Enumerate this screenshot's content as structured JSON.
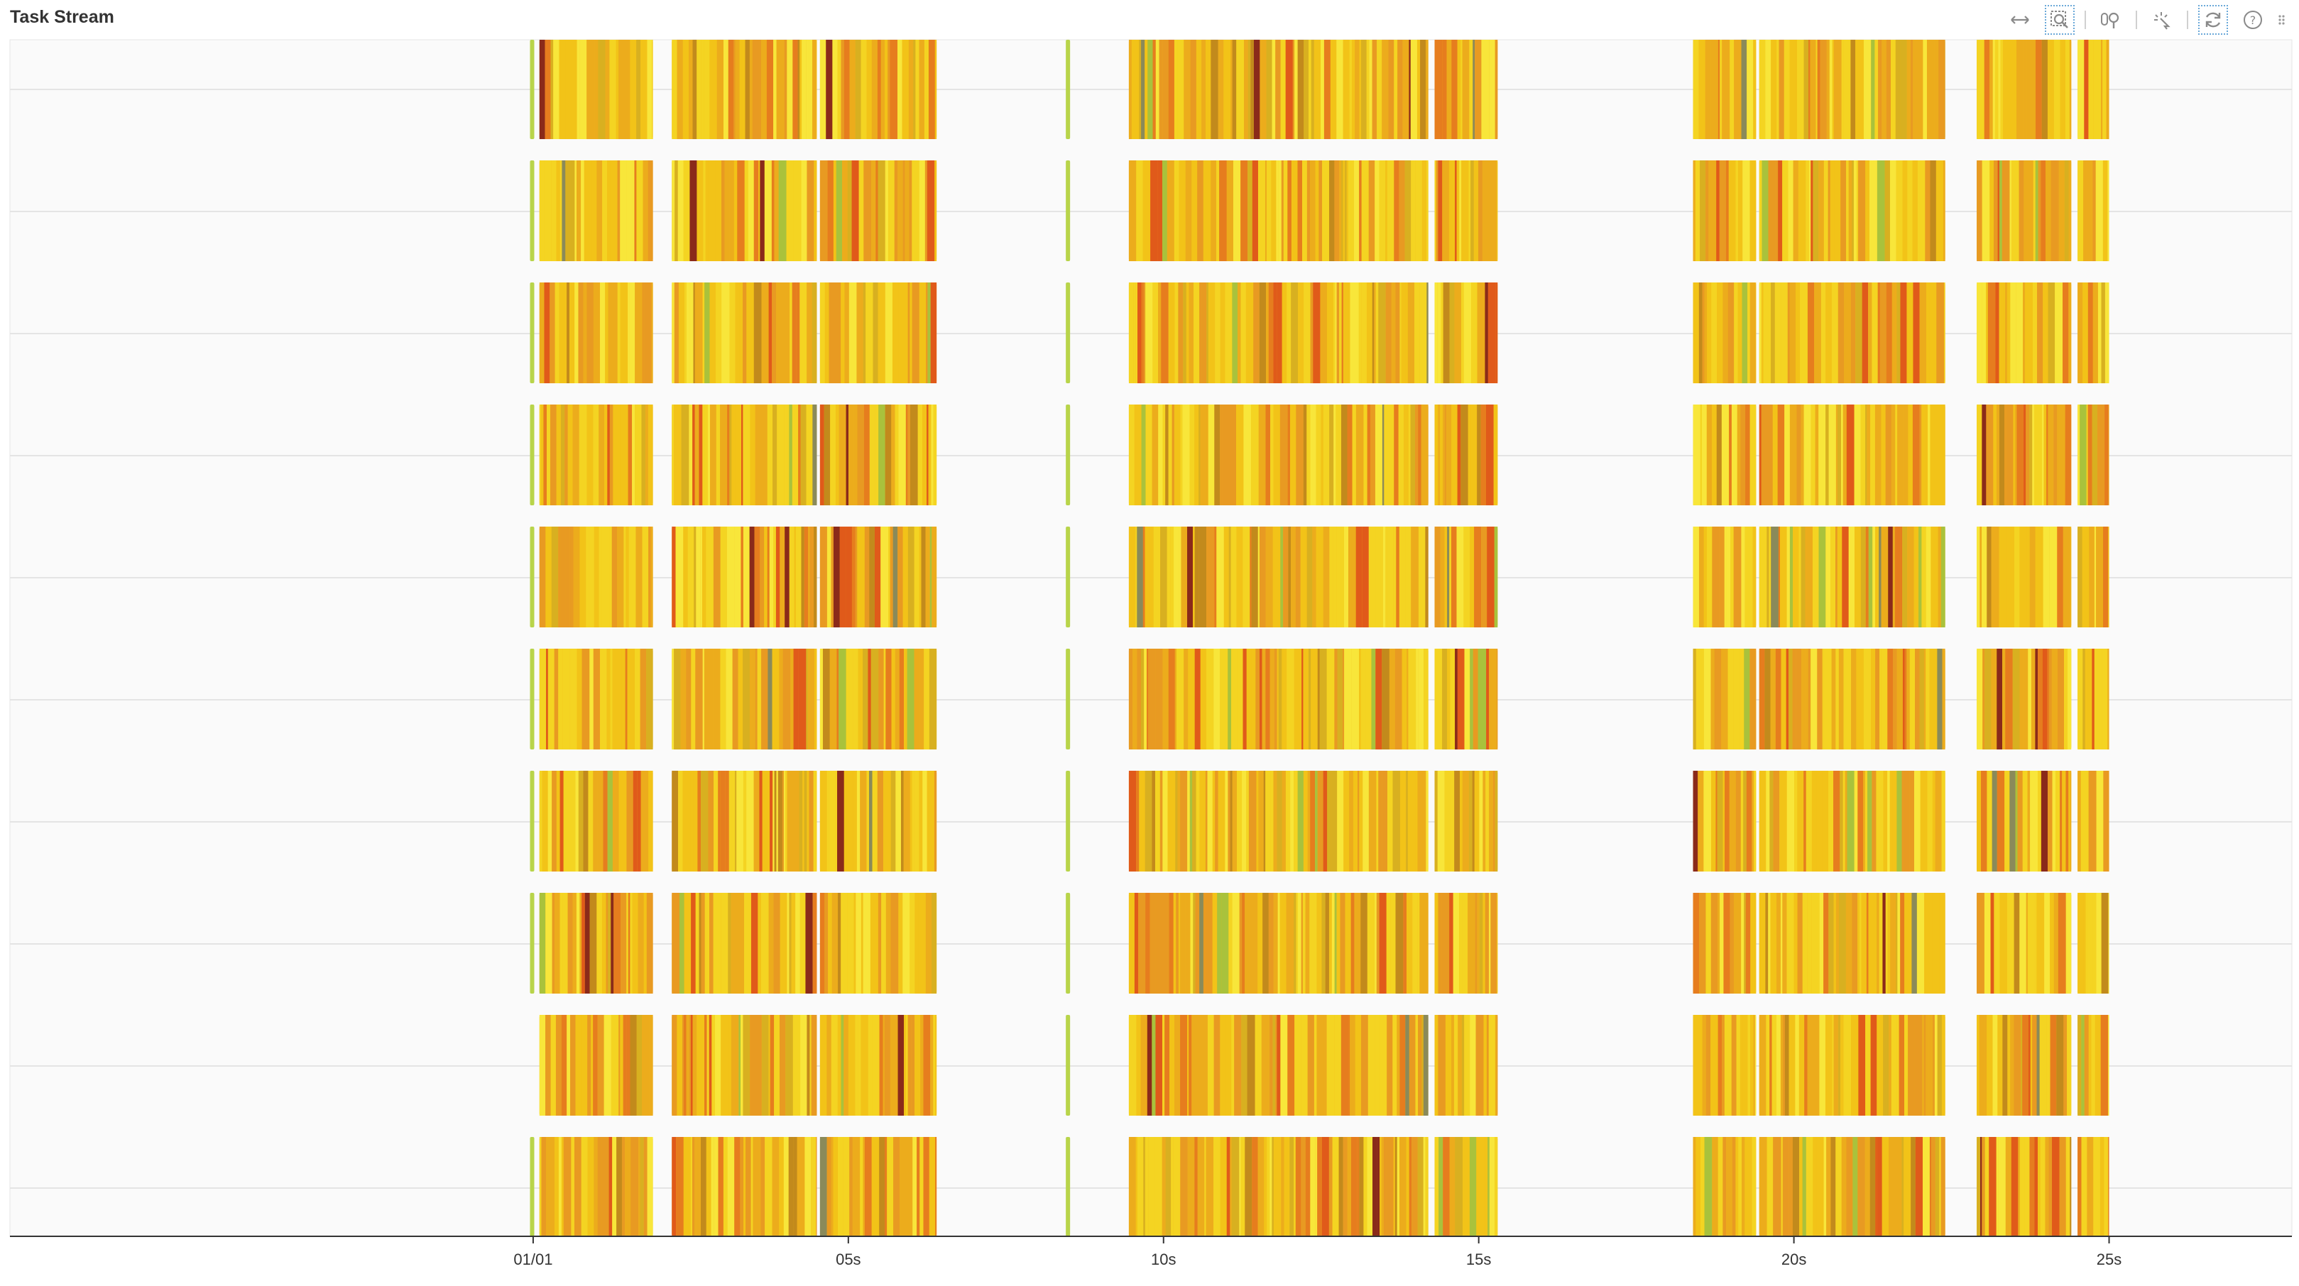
{
  "header": {
    "title": "Task Stream"
  },
  "toolbar": {
    "tools": [
      "pan-icon",
      "box-zoom-icon",
      "wheel-zoom-icon",
      "tap-icon",
      "reset-icon",
      "help-icon"
    ]
  },
  "chart_data": {
    "type": "timeline",
    "title": "Task Stream",
    "xlabel": "",
    "ylabel": "",
    "xlim": [
      -8.3,
      27.9
    ],
    "x_ticks": [
      {
        "value": 0,
        "label": "01/01"
      },
      {
        "value": 5,
        "label": "05s"
      },
      {
        "value": 10,
        "label": "10s"
      },
      {
        "value": 15,
        "label": "15s"
      },
      {
        "value": 20,
        "label": "20s"
      },
      {
        "value": 25,
        "label": "25s"
      }
    ],
    "lanes": 10,
    "grid": true,
    "task_groups": [
      {
        "start": 0.1,
        "end": 1.9
      },
      {
        "start": 2.2,
        "end": 4.5
      },
      {
        "start": 4.55,
        "end": 6.4
      },
      {
        "start": 9.45,
        "end": 14.2
      },
      {
        "start": 14.3,
        "end": 15.3
      },
      {
        "start": 18.4,
        "end": 19.4
      },
      {
        "start": 19.45,
        "end": 22.4
      },
      {
        "start": 22.9,
        "end": 24.4
      },
      {
        "start": 24.5,
        "end": 25.0
      }
    ],
    "colors": {
      "task_palette": [
        "#f4d422",
        "#f2c318",
        "#ecac1c",
        "#e89a22",
        "#e67d1e",
        "#e05a1a",
        "#f8e63a",
        "#d8b020",
        "#c28a1c",
        "#a9c23c",
        "#8a8a5a",
        "#8a2a1a"
      ],
      "startup": "#b8d44a",
      "grid": "#e4e4e4",
      "axis": "#333333",
      "background": "#fafafa"
    }
  }
}
